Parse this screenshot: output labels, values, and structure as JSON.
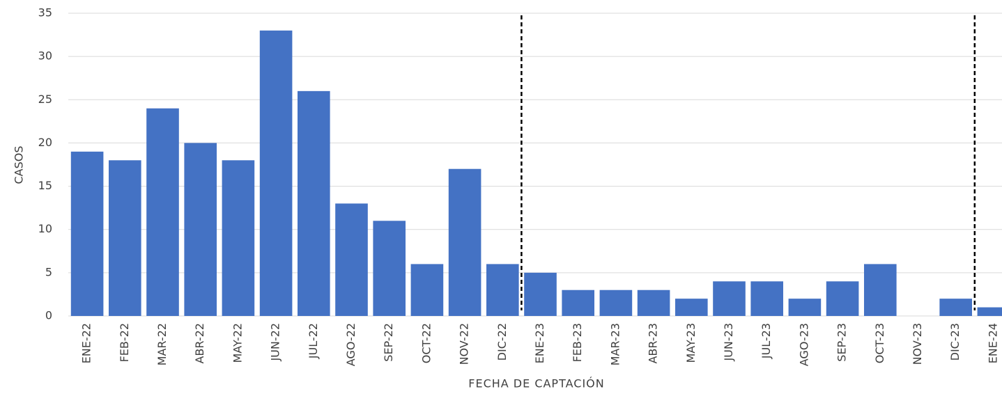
{
  "chart_data": {
    "type": "bar",
    "categories": [
      "ENE-22",
      "FEB-22",
      "MAR-22",
      "ABR-22",
      "MAY-22",
      "JUN-22",
      "JUL-22",
      "AGO-22",
      "SEP-22",
      "OCT-22",
      "NOV-22",
      "DIC-22",
      "ENE-23",
      "FEB-23",
      "MAR-23",
      "ABR-23",
      "MAY-23",
      "JUN-23",
      "JUL-23",
      "AGO-23",
      "SEP-23",
      "OCT-23",
      "NOV-23",
      "DIC-23",
      "ENE-24"
    ],
    "values": [
      19,
      18,
      24,
      20,
      18,
      33,
      26,
      13,
      11,
      6,
      17,
      6,
      5,
      3,
      3,
      3,
      2,
      4,
      4,
      2,
      4,
      6,
      0,
      2,
      1
    ],
    "color": "#4472c4",
    "ylim": [
      0,
      35
    ],
    "yticks": [
      0,
      5,
      10,
      15,
      20,
      25,
      30,
      35
    ],
    "grid": true,
    "y_label": "CASOS",
    "x_label": "FECHA DE CAPTACIÓN"
  }
}
